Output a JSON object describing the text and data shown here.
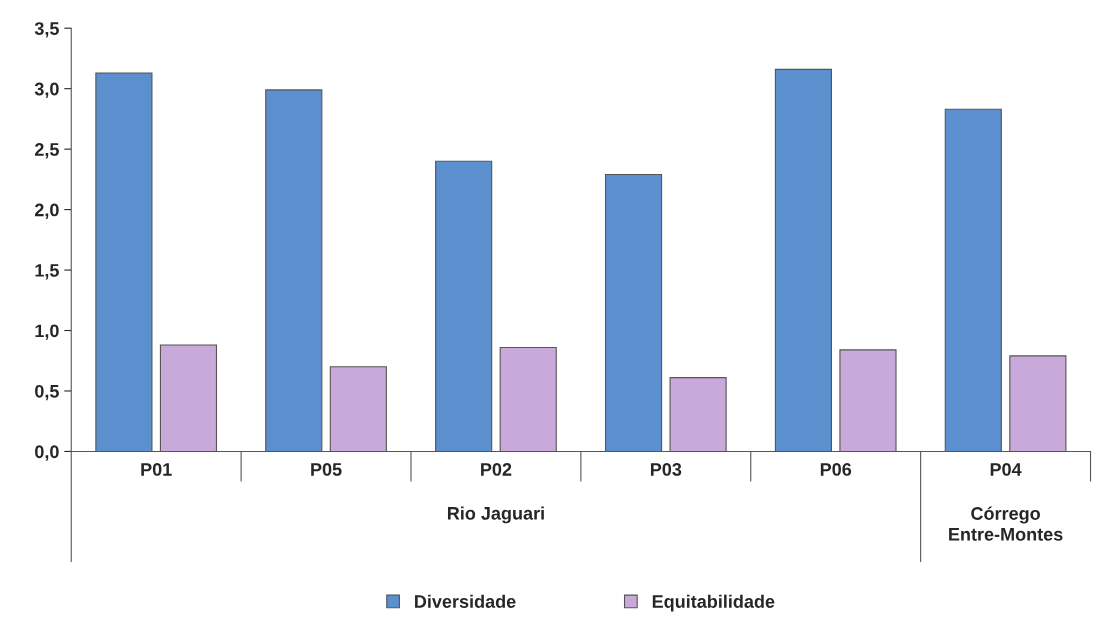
{
  "chart_data": {
    "type": "bar",
    "categories": [
      "P01",
      "P05",
      "P02",
      "P03",
      "P06",
      "P04"
    ],
    "series": [
      {
        "name": "Diversidade",
        "color": "#5b8fce",
        "values": [
          3.13,
          2.99,
          2.4,
          2.29,
          3.16,
          2.83
        ]
      },
      {
        "name": "Equitabilidade",
        "color": "#c9a9d9",
        "values": [
          0.88,
          0.7,
          0.86,
          0.61,
          0.84,
          0.79
        ]
      }
    ],
    "ylim": [
      0,
      3.5
    ],
    "yticks": [
      {
        "value": 0,
        "label": "0,0"
      },
      {
        "value": 0.5,
        "label": "0,5"
      },
      {
        "value": 1,
        "label": "1,0"
      },
      {
        "value": 1.5,
        "label": "1,5"
      },
      {
        "value": 2,
        "label": "2,0"
      },
      {
        "value": 2.5,
        "label": "2,5"
      },
      {
        "value": 3,
        "label": "3,0"
      },
      {
        "value": 3.5,
        "label": "3,5"
      }
    ],
    "annotations": [
      "Rio Jaguari",
      "Córrego\nEntre-Montes"
    ],
    "grid": false,
    "legend": "bottom"
  }
}
